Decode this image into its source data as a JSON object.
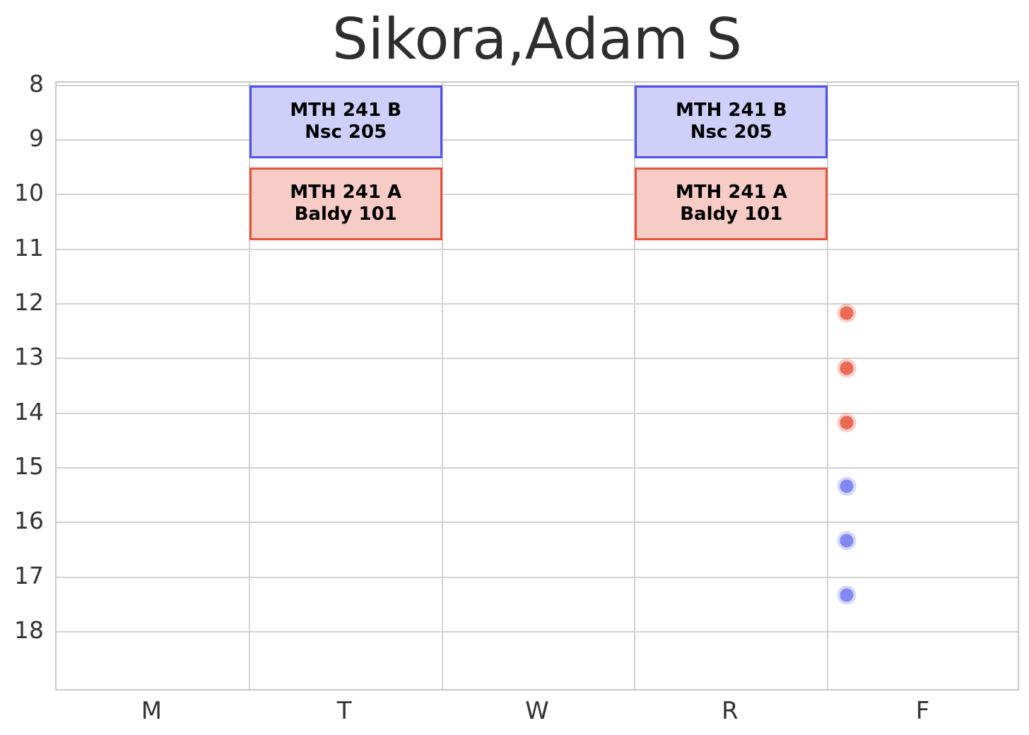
{
  "chart_data": {
    "type": "schedule-timetable",
    "title": "Sikora,Adam S",
    "x_axis": {
      "tick_labels": [
        "M",
        "T",
        "W",
        "R",
        "F"
      ],
      "range": [
        0,
        5
      ],
      "grid": "column-boundaries"
    },
    "y_axis": {
      "ticks": [
        8,
        9,
        10,
        11,
        12,
        13,
        14,
        15,
        16,
        17,
        18
      ],
      "tick_labels": [
        "8",
        "9",
        "10",
        "11",
        "12",
        "13",
        "14",
        "15",
        "16",
        "17",
        "18"
      ],
      "range": [
        7.95,
        19.1
      ],
      "unit": "hour-of-day",
      "inverted": true,
      "grid": true
    },
    "events": [
      {
        "day": "T",
        "start": 8.0,
        "end": 9.33,
        "course": "MTH 241 B",
        "room": "Nsc 205",
        "fill": "#cfcffa",
        "border": "#4c52ee"
      },
      {
        "day": "R",
        "start": 8.0,
        "end": 9.33,
        "course": "MTH 241 B",
        "room": "Nsc 205",
        "fill": "#cfcffa",
        "border": "#4c52ee"
      },
      {
        "day": "T",
        "start": 9.5,
        "end": 10.83,
        "course": "MTH 241 A",
        "room": "Baldy 101",
        "fill": "#f8ccc6",
        "border": "#e85136"
      },
      {
        "day": "R",
        "start": 9.5,
        "end": 10.83,
        "course": "MTH 241 A",
        "room": "Baldy 101",
        "fill": "#f8ccc6",
        "border": "#e85136"
      }
    ],
    "markers": [
      {
        "day_x": 4.1,
        "time": 12.17,
        "color": "#eb6a55"
      },
      {
        "day_x": 4.1,
        "time": 13.17,
        "color": "#eb6a55"
      },
      {
        "day_x": 4.1,
        "time": 14.17,
        "color": "#eb6a55"
      },
      {
        "day_x": 4.1,
        "time": 15.33,
        "color": "#8189f1"
      },
      {
        "day_x": 4.1,
        "time": 16.33,
        "color": "#8189f1"
      },
      {
        "day_x": 4.1,
        "time": 17.33,
        "color": "#8189f1"
      }
    ],
    "style": {
      "grid_color": "#d2d2d2",
      "border_color": "#c8c8c8",
      "text_color": "#333333",
      "title_color": "#2e2e2e",
      "marker_halo_alpha": 0.32
    }
  }
}
